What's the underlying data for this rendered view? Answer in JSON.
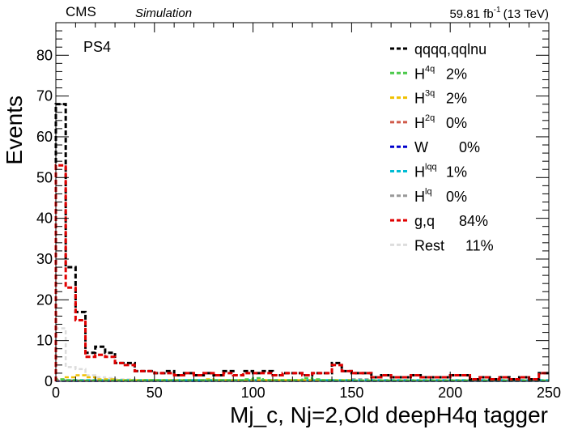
{
  "header": {
    "experiment": "CMS",
    "tag": "Simulation",
    "lumi": "59.81 fb",
    "lumi_sup": "-1",
    "energy": "(13 TeV)"
  },
  "category": "PS4",
  "chart_data": {
    "type": "histogram",
    "xlabel": "Mj_c, Nj=2,Old deepH4q tagger",
    "ylabel": "Events",
    "xlim": [
      0,
      250
    ],
    "ylim": [
      0,
      88
    ],
    "x_ticks": [
      0,
      50,
      100,
      150,
      200,
      250
    ],
    "y_ticks": [
      0,
      10,
      20,
      30,
      40,
      50,
      60,
      70,
      80
    ],
    "bin_width": 5,
    "series": [
      {
        "key": "total",
        "color": "#000000",
        "values": [
          68,
          28,
          17,
          7,
          8.5,
          7,
          4.5,
          4.5,
          2.5,
          2.5,
          2,
          2.5,
          1.5,
          2,
          1.5,
          2,
          1.5,
          2.5,
          1.5,
          2.5,
          2,
          2.5,
          1.5,
          2,
          2,
          1.5,
          2,
          2,
          4.5,
          2.5,
          2,
          2,
          1,
          1.5,
          1,
          1,
          1.5,
          1,
          1,
          1,
          1.5,
          1.5,
          0.5,
          1,
          0.5,
          1,
          0.5,
          1,
          0.5,
          2
        ]
      },
      {
        "key": "H4q",
        "color": "#4cc94c",
        "values": [
          0.5,
          0.3,
          0.2,
          0.2,
          0.2,
          0.2,
          0.2,
          0.2,
          0.2,
          0.3,
          0.3,
          0.2,
          0.2,
          0.3,
          0.3,
          0.3,
          0.3,
          0.3,
          0.3,
          0.5,
          0.8,
          0.3,
          0.3,
          0.3,
          0.3,
          0.8,
          0.5,
          0.3,
          0.2,
          0.2,
          0.2,
          0.2,
          0.2,
          0.2,
          0.2,
          0.2,
          0.2,
          0.2,
          0.2,
          0.2,
          0.2,
          0.2,
          0.2,
          0.2,
          0.2,
          0.2,
          0.2,
          0.2,
          0.2,
          0.2
        ]
      },
      {
        "key": "H3q",
        "color": "#f0c000",
        "values": [
          0.5,
          1,
          1.5,
          1,
          0.5,
          0.5,
          0.3,
          0.3,
          0.3,
          0.3,
          0.3,
          0.3,
          0.3,
          0.3,
          0.3,
          0.5,
          0.3,
          0.3,
          0.3,
          0.3,
          0.3,
          0.3,
          0.3,
          0.3,
          0.3,
          0.3,
          0.3,
          0.3,
          0.3,
          0.3,
          0.2,
          0.2,
          0.2,
          0.2,
          0.2,
          0.2,
          0.2,
          0.2,
          0.2,
          0.2,
          0.2,
          0.2,
          0.2,
          0.2,
          0.2,
          0.2,
          0.2,
          0.2,
          0.2,
          0.2
        ]
      },
      {
        "key": "H2q",
        "color": "#d05a4a",
        "values": [
          0.2,
          0.2,
          0.2,
          0.2,
          0.2,
          0.2,
          0.2,
          0.2,
          0.2,
          0.2,
          0.2,
          0.2,
          0.2,
          0.2,
          0.2,
          0.2,
          0.2,
          0.2,
          0.2,
          0.2,
          0.2,
          0.2,
          0.2,
          0.2,
          0.2,
          0.2,
          0.2,
          0.2,
          0.2,
          0.2,
          0.2,
          0.2,
          0.2,
          0.2,
          0.2,
          0.2,
          0.2,
          0.2,
          0.2,
          0.2,
          0.2,
          0.2,
          0.2,
          0.2,
          0.2,
          0.2,
          0.2,
          0.2,
          0.2,
          0.2
        ]
      },
      {
        "key": "W",
        "color": "#0000cc",
        "values": [
          0.1,
          0.1,
          0.1,
          0.1,
          0.1,
          0.1,
          0.1,
          0.1,
          0.1,
          0.1,
          0.1,
          0.1,
          0.1,
          0.1,
          0.1,
          0.1,
          0.1,
          0.1,
          0.1,
          0.1,
          0.1,
          0.1,
          0.1,
          0.1,
          0.1,
          0.1,
          0.1,
          0.1,
          0.1,
          0.1,
          0.1,
          0.1,
          0.1,
          0.1,
          0.1,
          0.1,
          0.1,
          0.1,
          0.1,
          0.1,
          0.1,
          0.1,
          0.1,
          0.1,
          0.1,
          0.1,
          0.1,
          0.1,
          0.1,
          0.1
        ]
      },
      {
        "key": "Hlqq",
        "color": "#00bcd4",
        "values": [
          0.4,
          0.3,
          0.3,
          0.3,
          0.3,
          0.3,
          0.3,
          0.3,
          0.3,
          0.3,
          0.3,
          0.3,
          0.3,
          0.3,
          0.3,
          0.3,
          0.3,
          0.3,
          0.3,
          0.3,
          0.3,
          0.3,
          0.3,
          0.3,
          0.3,
          0.3,
          0.3,
          0.3,
          0.3,
          0.3,
          0.3,
          0.3,
          0.3,
          0.3,
          0.3,
          0.3,
          0.3,
          0.3,
          0.3,
          0.3,
          0.3,
          0.3,
          0.3,
          0.3,
          0.3,
          0.3,
          0.3,
          0.3,
          0.3,
          0.3
        ]
      },
      {
        "key": "Hlq",
        "color": "#999999",
        "values": [
          0.2,
          0.2,
          0.2,
          0.2,
          0.2,
          0.2,
          0.2,
          0.2,
          0.2,
          0.2,
          0.2,
          0.2,
          0.2,
          0.2,
          0.2,
          0.2,
          0.2,
          0.2,
          0.2,
          0.2,
          0.2,
          0.2,
          0.2,
          0.2,
          0.2,
          0.2,
          0.2,
          0.2,
          0.2,
          0.2,
          0.5,
          0.5,
          0.2,
          0.2,
          0.2,
          0.2,
          0.2,
          0.2,
          0.2,
          0.2,
          0.2,
          0.2,
          0.2,
          0.2,
          0.2,
          0.2,
          0.2,
          0.2,
          0.2,
          0.2
        ]
      },
      {
        "key": "gq",
        "color": "#e00000",
        "values": [
          53,
          23,
          15,
          6,
          6.5,
          6,
          4.5,
          4,
          2.5,
          2.5,
          2,
          2,
          1.5,
          2,
          1.5,
          2,
          1.5,
          2,
          1.5,
          2,
          2,
          2,
          1.5,
          2,
          2,
          1.5,
          2,
          2,
          4,
          2.5,
          2,
          2,
          1,
          1.5,
          1,
          1,
          1.5,
          1,
          1,
          1,
          1.5,
          1.5,
          0.5,
          1,
          0.5,
          1,
          0.5,
          1,
          0.5,
          2
        ]
      },
      {
        "key": "rest",
        "color": "#dddddd",
        "values": [
          13,
          3.5,
          3,
          1.5,
          1,
          0.8,
          0.5,
          0.5,
          0.3,
          0.3,
          0.3,
          0.3,
          0.3,
          0.3,
          0.3,
          0.3,
          0.3,
          0.3,
          0.3,
          0.3,
          0.3,
          0.3,
          0.3,
          0.3,
          0.3,
          0.3,
          0.3,
          0.3,
          0.3,
          0.3,
          0.2,
          0.2,
          0.2,
          0.2,
          0.2,
          0.2,
          0.2,
          0.2,
          0.2,
          0.2,
          0.2,
          0.2,
          0.2,
          0.2,
          0.2,
          0.2,
          0.2,
          0.2,
          0.2,
          0.2
        ]
      }
    ],
    "legend": [
      {
        "series": "total",
        "base": "qqqq,qqlnu",
        "sup": "",
        "pct": ""
      },
      {
        "series": "H4q",
        "base": "H",
        "sup": "4q",
        "pct": "2%"
      },
      {
        "series": "H3q",
        "base": "H",
        "sup": "3q",
        "pct": "2%"
      },
      {
        "series": "H2q",
        "base": "H",
        "sup": "2q",
        "pct": "0%"
      },
      {
        "series": "W",
        "base": "W",
        "sup": "",
        "pct": "0%"
      },
      {
        "series": "Hlqq",
        "base": "H",
        "sup": "lqq",
        "pct": "1%"
      },
      {
        "series": "Hlq",
        "base": "H",
        "sup": "lq",
        "pct": "0%"
      },
      {
        "series": "gq",
        "base": "g,q",
        "sup": "",
        "pct": "84%"
      },
      {
        "series": "rest",
        "base": "Rest",
        "sup": "",
        "pct": "11%"
      }
    ],
    "legend_position": "top-right",
    "grid": false
  }
}
